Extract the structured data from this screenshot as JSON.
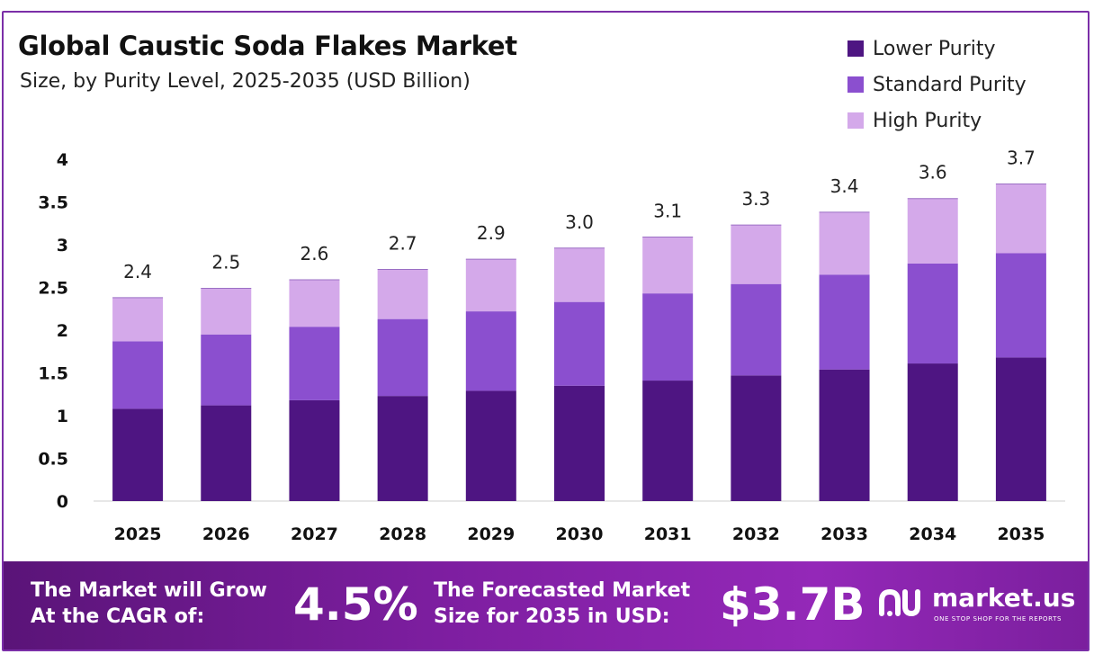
{
  "chart_data": {
    "type": "bar",
    "stacked": true,
    "title": "Global Caustic Soda Flakes Market",
    "subtitle": "Size, by Purity Level, 2025-2035 (USD Billion)",
    "categories": [
      "2025",
      "2026",
      "2027",
      "2028",
      "2029",
      "2030",
      "2031",
      "2032",
      "2033",
      "2034",
      "2035"
    ],
    "series": [
      {
        "name": "Lower Purity",
        "color": "#4e1582",
        "values": [
          1.08,
          1.12,
          1.18,
          1.23,
          1.29,
          1.35,
          1.41,
          1.47,
          1.54,
          1.61,
          1.68
        ]
      },
      {
        "name": "Standard Purity",
        "color": "#8b4fcf",
        "values": [
          0.79,
          0.83,
          0.86,
          0.9,
          0.93,
          0.98,
          1.02,
          1.07,
          1.11,
          1.17,
          1.22
        ]
      },
      {
        "name": "High Purity",
        "color": "#d4a9ea",
        "values": [
          0.51,
          0.54,
          0.55,
          0.58,
          0.61,
          0.63,
          0.66,
          0.69,
          0.73,
          0.76,
          0.81
        ]
      }
    ],
    "totals_labels": [
      "2.4",
      "2.5",
      "2.6",
      "2.7",
      "2.9",
      "3.0",
      "3.1",
      "3.3",
      "3.4",
      "3.6",
      "3.7"
    ],
    "ylim": [
      0,
      4
    ],
    "yticks": [
      "0",
      "0.5",
      "1",
      "1.5",
      "2",
      "2.5",
      "3",
      "3.5",
      "4"
    ],
    "grid": false,
    "legend_position": "top-right"
  },
  "footer": {
    "cagr_line1": "The Market will Grow",
    "cagr_line2": "At the CAGR of:",
    "cagr_value": "4.5%",
    "forecast_line1": "The Forecasted Market",
    "forecast_line2": "Size for 2035 in USD:",
    "forecast_value": "$3.7B",
    "brand_name": "market.us",
    "brand_tagline": "ONE STOP SHOP FOR THE REPORTS",
    "brand_icon": "market-us-logo-icon"
  }
}
